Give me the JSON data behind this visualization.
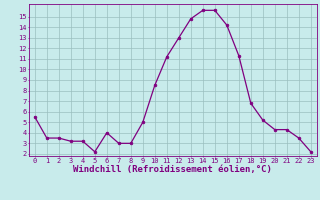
{
  "x": [
    0,
    1,
    2,
    3,
    4,
    5,
    6,
    7,
    8,
    9,
    10,
    11,
    12,
    13,
    14,
    15,
    16,
    17,
    18,
    19,
    20,
    21,
    22,
    23
  ],
  "y": [
    5.5,
    3.5,
    3.5,
    3.2,
    3.2,
    2.2,
    4.0,
    3.0,
    3.0,
    5.0,
    8.5,
    11.2,
    13.0,
    14.8,
    15.6,
    15.6,
    14.2,
    11.3,
    6.8,
    5.2,
    4.3,
    4.3,
    3.5,
    2.2
  ],
  "line_color": "#800080",
  "marker": "o",
  "marker_size": 2,
  "bg_color": "#c8ebeb",
  "grid_color": "#9bbfbf",
  "xlabel": "Windchill (Refroidissement éolien,°C)",
  "ylim_min": 1.8,
  "ylim_max": 16.2,
  "xlim_min": -0.5,
  "xlim_max": 23.5,
  "yticks": [
    2,
    3,
    4,
    5,
    6,
    7,
    8,
    9,
    10,
    11,
    12,
    13,
    14,
    15
  ],
  "xticks": [
    0,
    1,
    2,
    3,
    4,
    5,
    6,
    7,
    8,
    9,
    10,
    11,
    12,
    13,
    14,
    15,
    16,
    17,
    18,
    19,
    20,
    21,
    22,
    23
  ],
  "tick_label_color": "#800080",
  "tick_label_fontsize": 5.0,
  "xlabel_fontsize": 6.5,
  "spine_color": "#800080",
  "linewidth": 0.9
}
